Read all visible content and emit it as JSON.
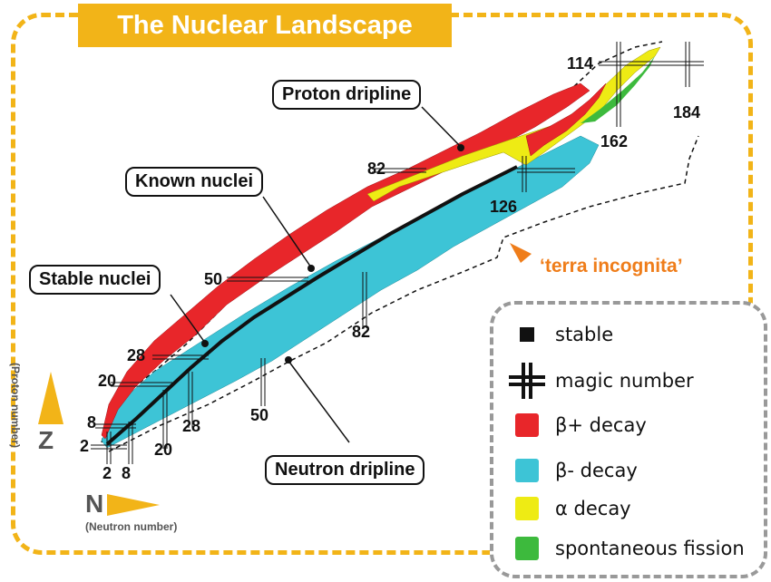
{
  "title": "The Nuclear Landscape",
  "callouts": {
    "proton_dripline": "Proton dripline",
    "known_nuclei": "Known nuclei",
    "stable_nuclei": "Stable nuclei",
    "neutron_dripline": "Neutron dripline"
  },
  "terra_incognita": "‘terra incognita’",
  "magic_numbers": {
    "proton": [
      "2",
      "8",
      "20",
      "28",
      "50",
      "82",
      "114"
    ],
    "neutron": [
      "2",
      "8",
      "20",
      "28",
      "50",
      "82",
      "126",
      "162",
      "184"
    ]
  },
  "axes": {
    "z_letter": "Z",
    "z_label": "(Proton number)",
    "n_letter": "N",
    "n_label": "(Neutron number)"
  },
  "legend": {
    "items": [
      {
        "label": "stable",
        "kind": "square",
        "color": "#111111"
      },
      {
        "label": "magic number",
        "kind": "magic",
        "color": "#111111"
      },
      {
        "label": "β+ decay",
        "kind": "swatch",
        "color": "#e8262a"
      },
      {
        "label": "β- decay",
        "kind": "swatch",
        "color": "#3dc4d6"
      },
      {
        "label": "α decay",
        "kind": "swatch",
        "color": "#eeeb14"
      },
      {
        "label": "spontaneous fission",
        "kind": "swatch",
        "color": "#3dba3d"
      }
    ]
  },
  "colors": {
    "frame": "#f2b418",
    "beta_plus": "#e8262a",
    "beta_minus": "#3dc4d6",
    "alpha": "#eeeb14",
    "fission": "#3dba3d",
    "stable": "#111111",
    "terra": "#ef7d1a"
  }
}
